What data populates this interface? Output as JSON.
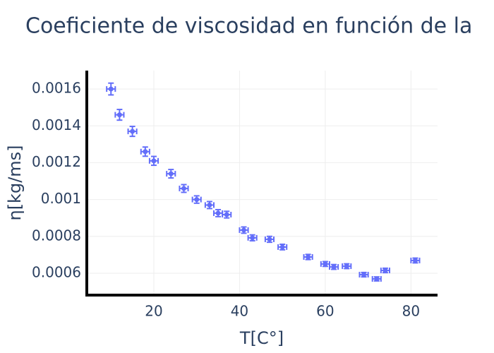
{
  "chart_data": {
    "type": "scatter",
    "title": "Coeficiente de viscosidad en función de la",
    "x_label": "T[C°]",
    "y_label": "η[kg/ms]",
    "color": "#636efa",
    "x": [
      10,
      12,
      15,
      18,
      20,
      24,
      27,
      30,
      33,
      35,
      37,
      41,
      43,
      47,
      50,
      56,
      60,
      62,
      65,
      69,
      72,
      74,
      81
    ],
    "y": [
      0.0016,
      0.00146,
      0.00137,
      0.00126,
      0.00121,
      0.00114,
      0.00106,
      0.001,
      0.00097,
      0.000926,
      0.000918,
      0.000834,
      0.000792,
      0.000784,
      0.000742,
      0.000688,
      0.00065,
      0.000634,
      0.000638,
      0.000592,
      0.000569,
      0.000615,
      0.000669
    ],
    "error_y": [
      3.2e-05,
      2.9e-05,
      2.7e-05,
      2.5e-05,
      2.4e-05,
      2.3e-05,
      2.1e-05,
      2e-05,
      1.9e-05,
      1.9e-05,
      1.8e-05,
      1.7e-05,
      1.6e-05,
      1.6e-05,
      1.5e-05,
      1.4e-05,
      1.3e-05,
      1.3e-05,
      1.3e-05,
      1.2e-05,
      1.1e-05,
      1.2e-05,
      1.3e-05
    ],
    "error_x": [
      1,
      1,
      1,
      1,
      1,
      1,
      1,
      1,
      1,
      1,
      1,
      1,
      1,
      1,
      1,
      1,
      1,
      1,
      1,
      1,
      1,
      1,
      1
    ],
    "xlim": [
      4.36,
      86.2
    ],
    "ylim": [
      0.000481,
      0.0017
    ],
    "xticks": [
      20,
      40,
      60,
      80
    ],
    "yticks": [
      0.0006,
      0.0008,
      0.001,
      0.0012,
      0.0014,
      0.0016
    ],
    "grid": true
  }
}
